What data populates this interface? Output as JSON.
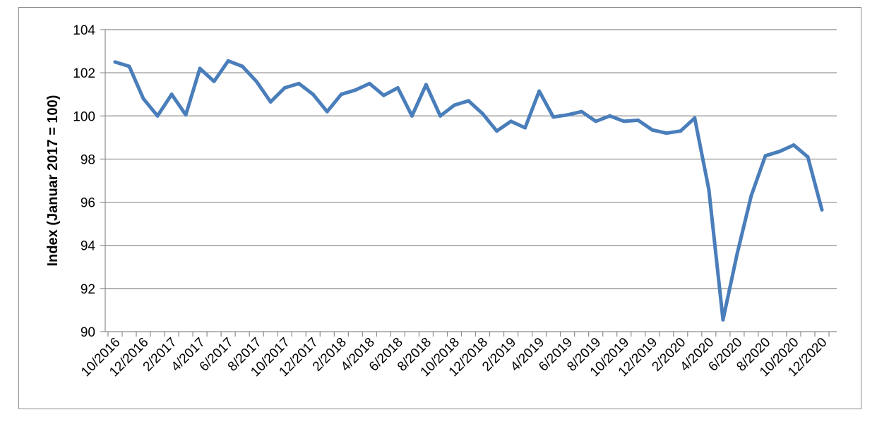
{
  "chart_data": {
    "type": "line",
    "title": "",
    "xlabel": "",
    "ylabel": "Index (Januar 2017 = 100)",
    "ylim": [
      90,
      104
    ],
    "yticks": [
      90,
      92,
      94,
      96,
      98,
      100,
      102,
      104
    ],
    "grid": true,
    "legend": "none",
    "line_color": "#4a7ebb",
    "grid_color": "#8c8c8c",
    "x": [
      "10/2016",
      "11/2016",
      "12/2016",
      "1/2017",
      "2/2017",
      "3/2017",
      "4/2017",
      "5/2017",
      "6/2017",
      "7/2017",
      "8/2017",
      "9/2017",
      "10/2017",
      "11/2017",
      "12/2017",
      "1/2018",
      "2/2018",
      "3/2018",
      "4/2018",
      "5/2018",
      "6/2018",
      "7/2018",
      "8/2018",
      "9/2018",
      "10/2018",
      "11/2018",
      "12/2018",
      "1/2019",
      "2/2019",
      "3/2019",
      "4/2019",
      "5/2019",
      "6/2019",
      "7/2019",
      "8/2019",
      "9/2019",
      "10/2019",
      "11/2019",
      "12/2019",
      "1/2020",
      "2/2020",
      "3/2020",
      "4/2020",
      "5/2020",
      "6/2020",
      "7/2020",
      "8/2020",
      "9/2020",
      "10/2020",
      "11/2020",
      "12/2020"
    ],
    "x_tick_labels": [
      "10/2016",
      "12/2016",
      "2/2017",
      "4/2017",
      "6/2017",
      "8/2017",
      "10/2017",
      "12/2017",
      "2/2018",
      "4/2018",
      "6/2018",
      "8/2018",
      "10/2018",
      "12/2018",
      "2/2019",
      "4/2019",
      "6/2019",
      "8/2019",
      "10/2019",
      "12/2019",
      "2/2020",
      "4/2020",
      "6/2020",
      "8/2020",
      "10/2020",
      "12/2020"
    ],
    "series": [
      {
        "values": [
          102.5,
          102.3,
          100.8,
          100.0,
          101.0,
          100.05,
          102.2,
          101.6,
          102.55,
          102.3,
          101.6,
          100.65,
          101.3,
          101.5,
          101.0,
          100.2,
          101.0,
          101.2,
          101.5,
          100.95,
          101.3,
          100.0,
          101.45,
          100.0,
          100.5,
          100.7,
          100.1,
          99.3,
          99.75,
          99.45,
          101.15,
          99.95,
          100.05,
          100.2,
          99.75,
          100.0,
          99.75,
          99.8,
          99.35,
          99.2,
          99.3,
          99.9,
          96.6,
          90.55,
          93.6,
          96.3,
          98.15,
          98.35,
          98.65,
          98.1,
          95.65
        ]
      }
    ]
  }
}
